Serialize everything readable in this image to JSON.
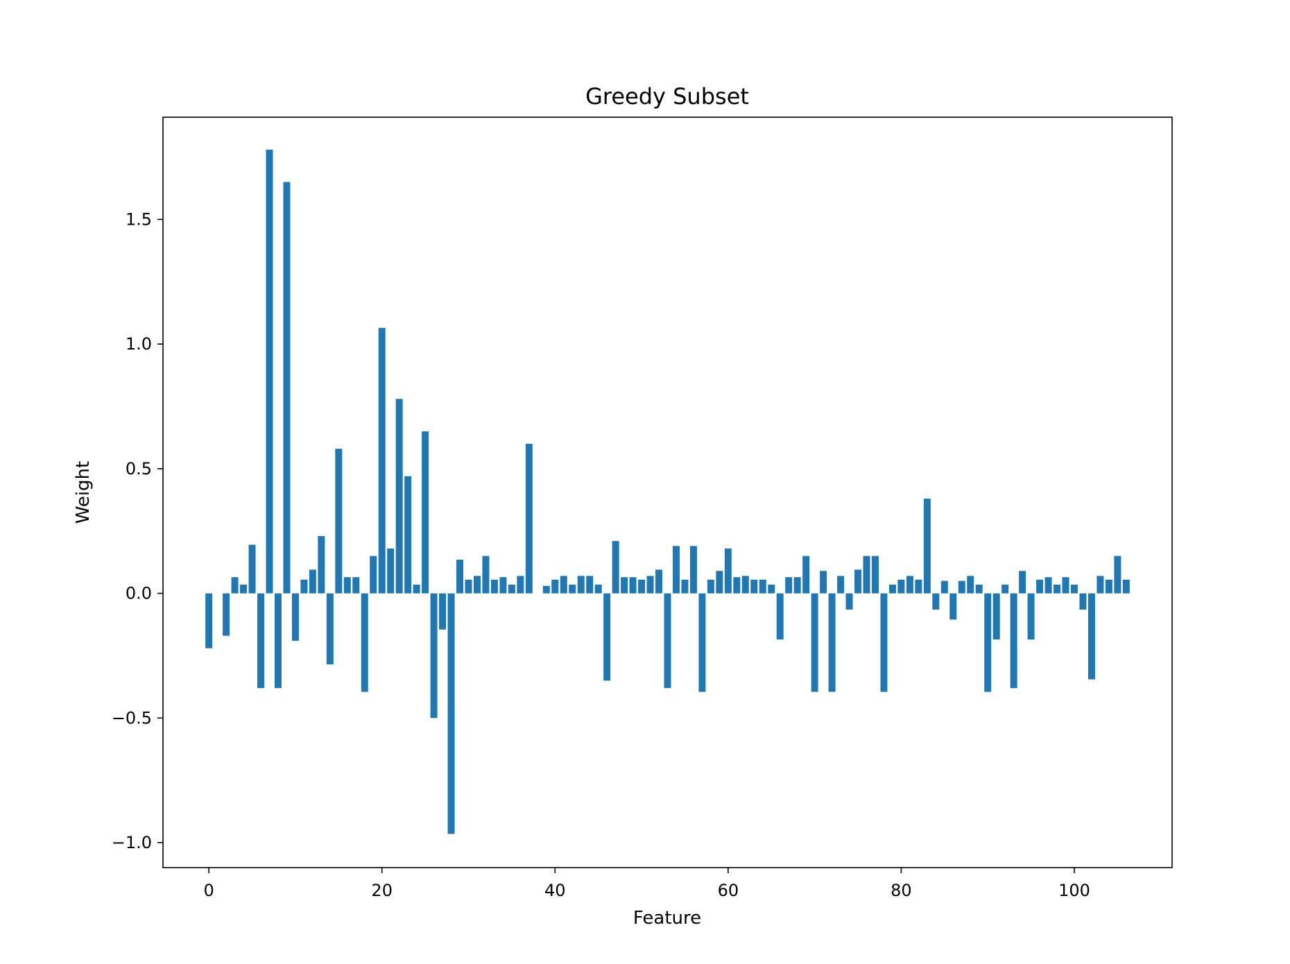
{
  "chart_data": {
    "type": "bar",
    "title": "Greedy Subset",
    "xlabel": "Feature",
    "ylabel": "Weight",
    "bar_color": "#1f77b4",
    "xlim": [
      -5.3,
      111.3
    ],
    "ylim": [
      -1.1,
      1.91
    ],
    "xticks": [
      0,
      20,
      40,
      60,
      80,
      100
    ],
    "xtick_labels": [
      "0",
      "20",
      "40",
      "60",
      "80",
      "100"
    ],
    "yticks": [
      -1.0,
      -0.5,
      0.0,
      0.5,
      1.0,
      1.5
    ],
    "ytick_labels": [
      "−1.0",
      "−0.5",
      "0.0",
      "0.5",
      "1.0",
      "1.5"
    ],
    "grid": false,
    "x": [
      0,
      1,
      2,
      3,
      4,
      5,
      6,
      7,
      8,
      9,
      10,
      11,
      12,
      13,
      14,
      15,
      16,
      17,
      18,
      19,
      20,
      21,
      22,
      23,
      24,
      25,
      26,
      27,
      28,
      29,
      30,
      31,
      32,
      33,
      34,
      35,
      36,
      37,
      38,
      39,
      40,
      41,
      42,
      43,
      44,
      45,
      46,
      47,
      48,
      49,
      50,
      51,
      52,
      53,
      54,
      55,
      56,
      57,
      58,
      59,
      60,
      61,
      62,
      63,
      64,
      65,
      66,
      67,
      68,
      69,
      70,
      71,
      72,
      73,
      74,
      75,
      76,
      77,
      78,
      79,
      80,
      81,
      82,
      83,
      84,
      85,
      86,
      87,
      88,
      89,
      90,
      91,
      92,
      93,
      94,
      95,
      96,
      97,
      98,
      99,
      100,
      101,
      102,
      103,
      104,
      105,
      106
    ],
    "values": [
      -0.22,
      0.0,
      -0.17,
      0.065,
      0.035,
      0.195,
      -0.38,
      1.78,
      -0.38,
      1.65,
      -0.19,
      0.055,
      0.095,
      0.23,
      -0.285,
      0.58,
      0.065,
      0.065,
      -0.395,
      0.15,
      1.065,
      0.18,
      0.78,
      0.47,
      0.035,
      0.65,
      -0.5,
      -0.145,
      -0.965,
      0.135,
      0.055,
      0.07,
      0.15,
      0.055,
      0.065,
      0.035,
      0.07,
      0.6,
      0.0,
      0.03,
      0.055,
      0.07,
      0.035,
      0.07,
      0.07,
      0.035,
      -0.35,
      0.21,
      0.065,
      0.065,
      0.055,
      0.07,
      0.095,
      -0.38,
      0.19,
      0.055,
      0.19,
      -0.395,
      0.055,
      0.09,
      0.18,
      0.065,
      0.07,
      0.055,
      0.055,
      0.035,
      -0.185,
      0.065,
      0.065,
      0.15,
      -0.395,
      0.09,
      -0.395,
      0.07,
      -0.065,
      0.095,
      0.15,
      0.15,
      -0.395,
      0.035,
      0.055,
      0.07,
      0.055,
      0.38,
      -0.065,
      0.05,
      -0.105,
      0.05,
      0.07,
      0.035,
      -0.395,
      -0.185,
      0.035,
      -0.38,
      0.09,
      -0.185,
      0.055,
      0.065,
      0.035,
      0.065,
      0.035,
      -0.065,
      -0.345,
      0.07,
      0.055,
      0.15,
      0.055
    ]
  }
}
